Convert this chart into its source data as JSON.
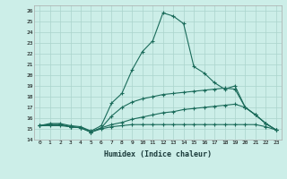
{
  "xlabel": "Humidex (Indice chaleur)",
  "ylabel": "",
  "bg_color": "#cceee8",
  "line_color": "#1a6b5a",
  "grid_color": "#aad4cc",
  "xlim": [
    -0.5,
    23.5
  ],
  "ylim": [
    14,
    26.5
  ],
  "xticks": [
    0,
    1,
    2,
    3,
    4,
    5,
    6,
    7,
    8,
    9,
    10,
    11,
    12,
    13,
    14,
    15,
    16,
    17,
    18,
    19,
    20,
    21,
    22,
    23
  ],
  "yticks": [
    14,
    15,
    16,
    17,
    18,
    19,
    20,
    21,
    22,
    23,
    24,
    25,
    26
  ],
  "lines": [
    {
      "x": [
        0,
        1,
        2,
        3,
        4,
        5,
        6,
        7,
        8,
        9,
        10,
        11,
        12,
        13,
        14,
        15,
        16,
        17,
        18,
        19,
        20,
        21,
        22,
        23
      ],
      "y": [
        15.3,
        15.5,
        15.5,
        15.3,
        15.2,
        14.8,
        15.3,
        17.4,
        18.3,
        20.5,
        22.2,
        23.2,
        25.8,
        25.5,
        24.8,
        20.8,
        20.2,
        19.3,
        18.7,
        19.0,
        17.0,
        16.3,
        15.5,
        14.9
      ]
    },
    {
      "x": [
        0,
        1,
        2,
        3,
        4,
        5,
        6,
        7,
        8,
        9,
        10,
        11,
        12,
        13,
        14,
        15,
        16,
        17,
        18,
        19,
        20,
        21,
        22,
        23
      ],
      "y": [
        15.3,
        15.4,
        15.4,
        15.2,
        15.1,
        14.7,
        15.1,
        16.2,
        17.0,
        17.5,
        17.8,
        18.0,
        18.2,
        18.3,
        18.4,
        18.5,
        18.6,
        18.7,
        18.8,
        18.7,
        17.0,
        16.3,
        15.5,
        14.9
      ]
    },
    {
      "x": [
        0,
        1,
        2,
        3,
        4,
        5,
        6,
        7,
        8,
        9,
        10,
        11,
        12,
        13,
        14,
        15,
        16,
        17,
        18,
        19,
        20,
        21,
        22,
        23
      ],
      "y": [
        15.3,
        15.4,
        15.4,
        15.2,
        15.1,
        14.7,
        15.1,
        15.4,
        15.6,
        15.9,
        16.1,
        16.3,
        16.5,
        16.6,
        16.8,
        16.9,
        17.0,
        17.1,
        17.2,
        17.3,
        17.0,
        16.3,
        15.5,
        14.9
      ]
    },
    {
      "x": [
        0,
        1,
        2,
        3,
        4,
        5,
        6,
        7,
        8,
        9,
        10,
        11,
        12,
        13,
        14,
        15,
        16,
        17,
        18,
        19,
        20,
        21,
        22,
        23
      ],
      "y": [
        15.3,
        15.3,
        15.3,
        15.2,
        15.1,
        14.7,
        15.0,
        15.2,
        15.3,
        15.4,
        15.4,
        15.4,
        15.4,
        15.4,
        15.4,
        15.4,
        15.4,
        15.4,
        15.4,
        15.4,
        15.4,
        15.4,
        15.2,
        14.9
      ]
    }
  ]
}
